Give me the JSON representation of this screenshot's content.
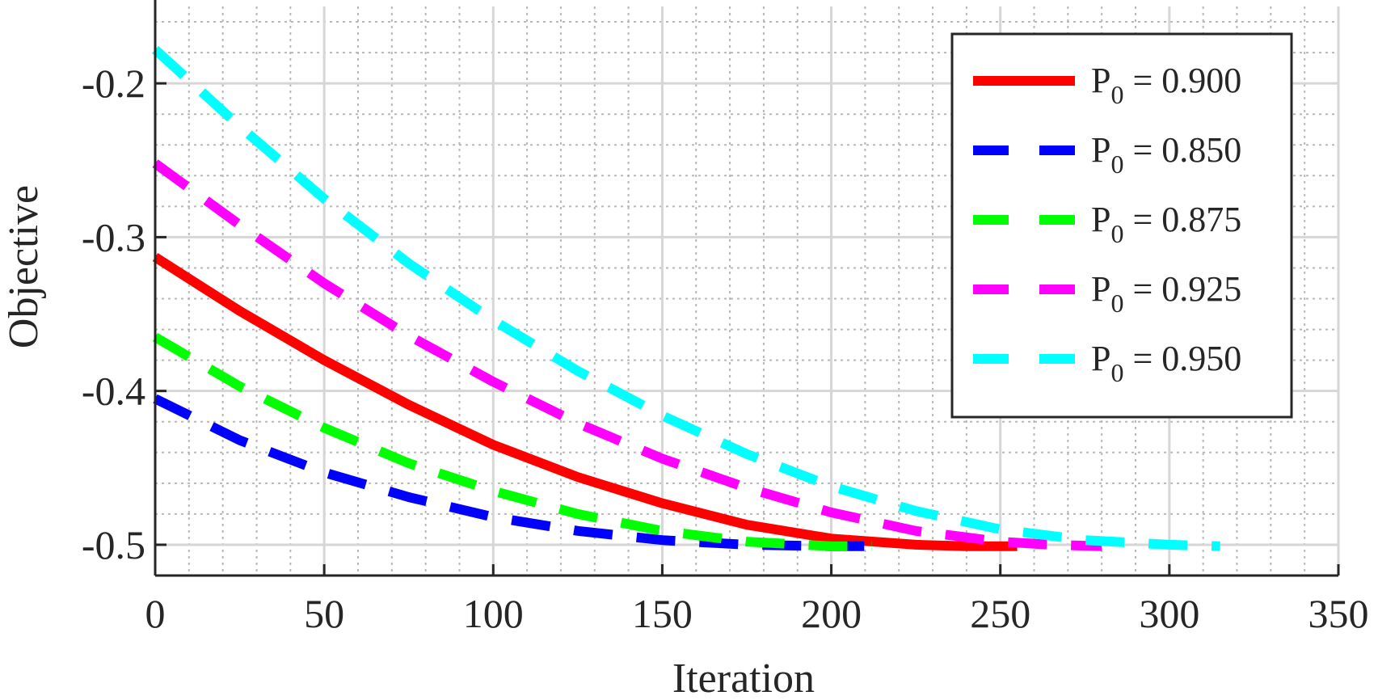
{
  "chart_data": {
    "type": "line",
    "title": "",
    "xlabel": "Iteration",
    "ylabel": "Objective",
    "xlim": [
      0,
      350
    ],
    "ylim": [
      -0.52,
      -0.15
    ],
    "xticks": [
      0,
      50,
      100,
      150,
      200,
      250,
      300,
      350
    ],
    "yticks": [
      -0.5,
      -0.4,
      -0.3,
      -0.2
    ],
    "xtick_labels": [
      "0",
      "50",
      "100",
      "150",
      "200",
      "250",
      "300",
      "350"
    ],
    "ytick_labels": [
      "-0.5",
      "-0.4",
      "-0.3",
      "-0.2"
    ],
    "grid": true,
    "minor_grid": true,
    "legend_position": "top-right",
    "series": [
      {
        "name": "P0 = 0.900",
        "label_main": "P",
        "label_sub": "0",
        "label_rest": " = 0.900",
        "color": "#ff0000",
        "style": "solid",
        "x": [
          0,
          25,
          50,
          75,
          100,
          125,
          150,
          175,
          200,
          225,
          240,
          255
        ],
        "y": [
          -0.313,
          -0.348,
          -0.38,
          -0.409,
          -0.435,
          -0.456,
          -0.473,
          -0.487,
          -0.496,
          -0.5,
          -0.501,
          -0.501
        ]
      },
      {
        "name": "P0 = 0.850",
        "label_main": "P",
        "label_sub": "0",
        "label_rest": " = 0.850",
        "color": "#0000ff",
        "style": "dashed",
        "x": [
          0,
          25,
          50,
          75,
          100,
          125,
          150,
          175,
          200,
          212
        ],
        "y": [
          -0.405,
          -0.432,
          -0.453,
          -0.469,
          -0.482,
          -0.491,
          -0.497,
          -0.5,
          -0.501,
          -0.501
        ]
      },
      {
        "name": "P0 = 0.875",
        "label_main": "P",
        "label_sub": "0",
        "label_rest": " = 0.875",
        "color": "#00ff00",
        "style": "dashed",
        "x": [
          0,
          25,
          50,
          75,
          100,
          125,
          150,
          175,
          200,
          212
        ],
        "y": [
          -0.365,
          -0.397,
          -0.424,
          -0.447,
          -0.465,
          -0.48,
          -0.491,
          -0.498,
          -0.501,
          -0.501
        ]
      },
      {
        "name": "P0 = 0.925",
        "label_main": "P",
        "label_sub": "0",
        "label_rest": " = 0.925",
        "color": "#ff00ff",
        "style": "dashed",
        "x": [
          0,
          25,
          50,
          75,
          100,
          125,
          150,
          175,
          200,
          225,
          250,
          265,
          280
        ],
        "y": [
          -0.252,
          -0.292,
          -0.33,
          -0.364,
          -0.394,
          -0.421,
          -0.444,
          -0.463,
          -0.479,
          -0.491,
          -0.498,
          -0.5,
          -0.501
        ]
      },
      {
        "name": "P0 = 0.950",
        "label_main": "P",
        "label_sub": "0",
        "label_rest": " = 0.950",
        "color": "#00ffff",
        "style": "dashed",
        "x": [
          0,
          25,
          50,
          75,
          100,
          125,
          150,
          175,
          200,
          225,
          250,
          275,
          300,
          315
        ],
        "y": [
          -0.178,
          -0.228,
          -0.275,
          -0.317,
          -0.354,
          -0.387,
          -0.416,
          -0.441,
          -0.462,
          -0.478,
          -0.49,
          -0.497,
          -0.5,
          -0.501
        ]
      }
    ]
  }
}
